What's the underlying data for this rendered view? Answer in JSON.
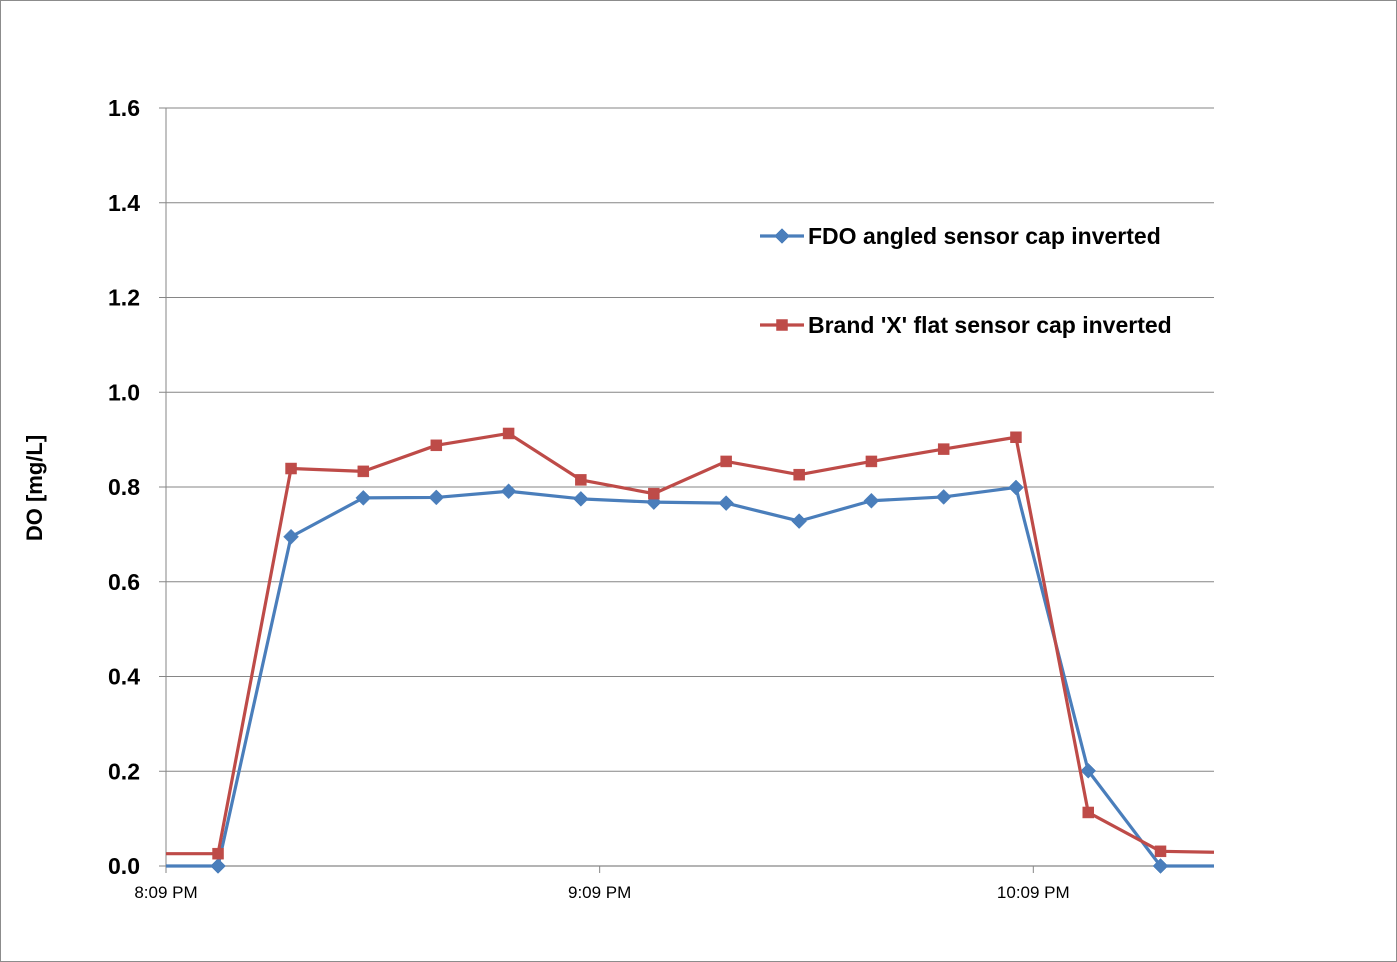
{
  "chart_data": {
    "type": "line",
    "title": "",
    "xlabel": "",
    "ylabel": "DO [mg/L]",
    "x_ticks": [
      "8:09 PM",
      "9:09 PM",
      "10:09 PM"
    ],
    "x_tick_minutes": [
      0,
      60,
      120
    ],
    "xlim_minutes": [
      0,
      145
    ],
    "y_ticks": [
      "0.0",
      "0.2",
      "0.4",
      "0.6",
      "0.8",
      "1.0",
      "1.2",
      "1.4",
      "1.6"
    ],
    "ylim": [
      0,
      1.6
    ],
    "grid": "horizontal",
    "legend_position": "upper-right",
    "series": [
      {
        "name": "FDO angled sensor cap inverted",
        "color": "#4a7ebb",
        "marker": "diamond",
        "x_minutes": [
          0,
          7.2,
          17.3,
          27.3,
          37.4,
          47.4,
          57.4,
          67.5,
          77.5,
          87.6,
          97.6,
          107.6,
          117.6,
          127.6,
          137.6,
          145
        ],
        "values": [
          0.0,
          0.0,
          0.695,
          0.777,
          0.778,
          0.791,
          0.775,
          0.768,
          0.766,
          0.728,
          0.771,
          0.779,
          0.799,
          0.201,
          0.0,
          0.0
        ]
      },
      {
        "name": "Brand 'X' flat sensor cap inverted",
        "color": "#be4b48",
        "marker": "square",
        "x_minutes": [
          0,
          7.2,
          17.3,
          27.3,
          37.4,
          47.4,
          57.4,
          67.5,
          77.5,
          87.6,
          97.6,
          107.6,
          117.6,
          127.6,
          137.6,
          145
        ],
        "values": [
          0.026,
          0.026,
          0.839,
          0.833,
          0.888,
          0.913,
          0.815,
          0.786,
          0.854,
          0.826,
          0.854,
          0.88,
          0.905,
          0.113,
          0.031,
          0.029
        ]
      }
    ]
  }
}
